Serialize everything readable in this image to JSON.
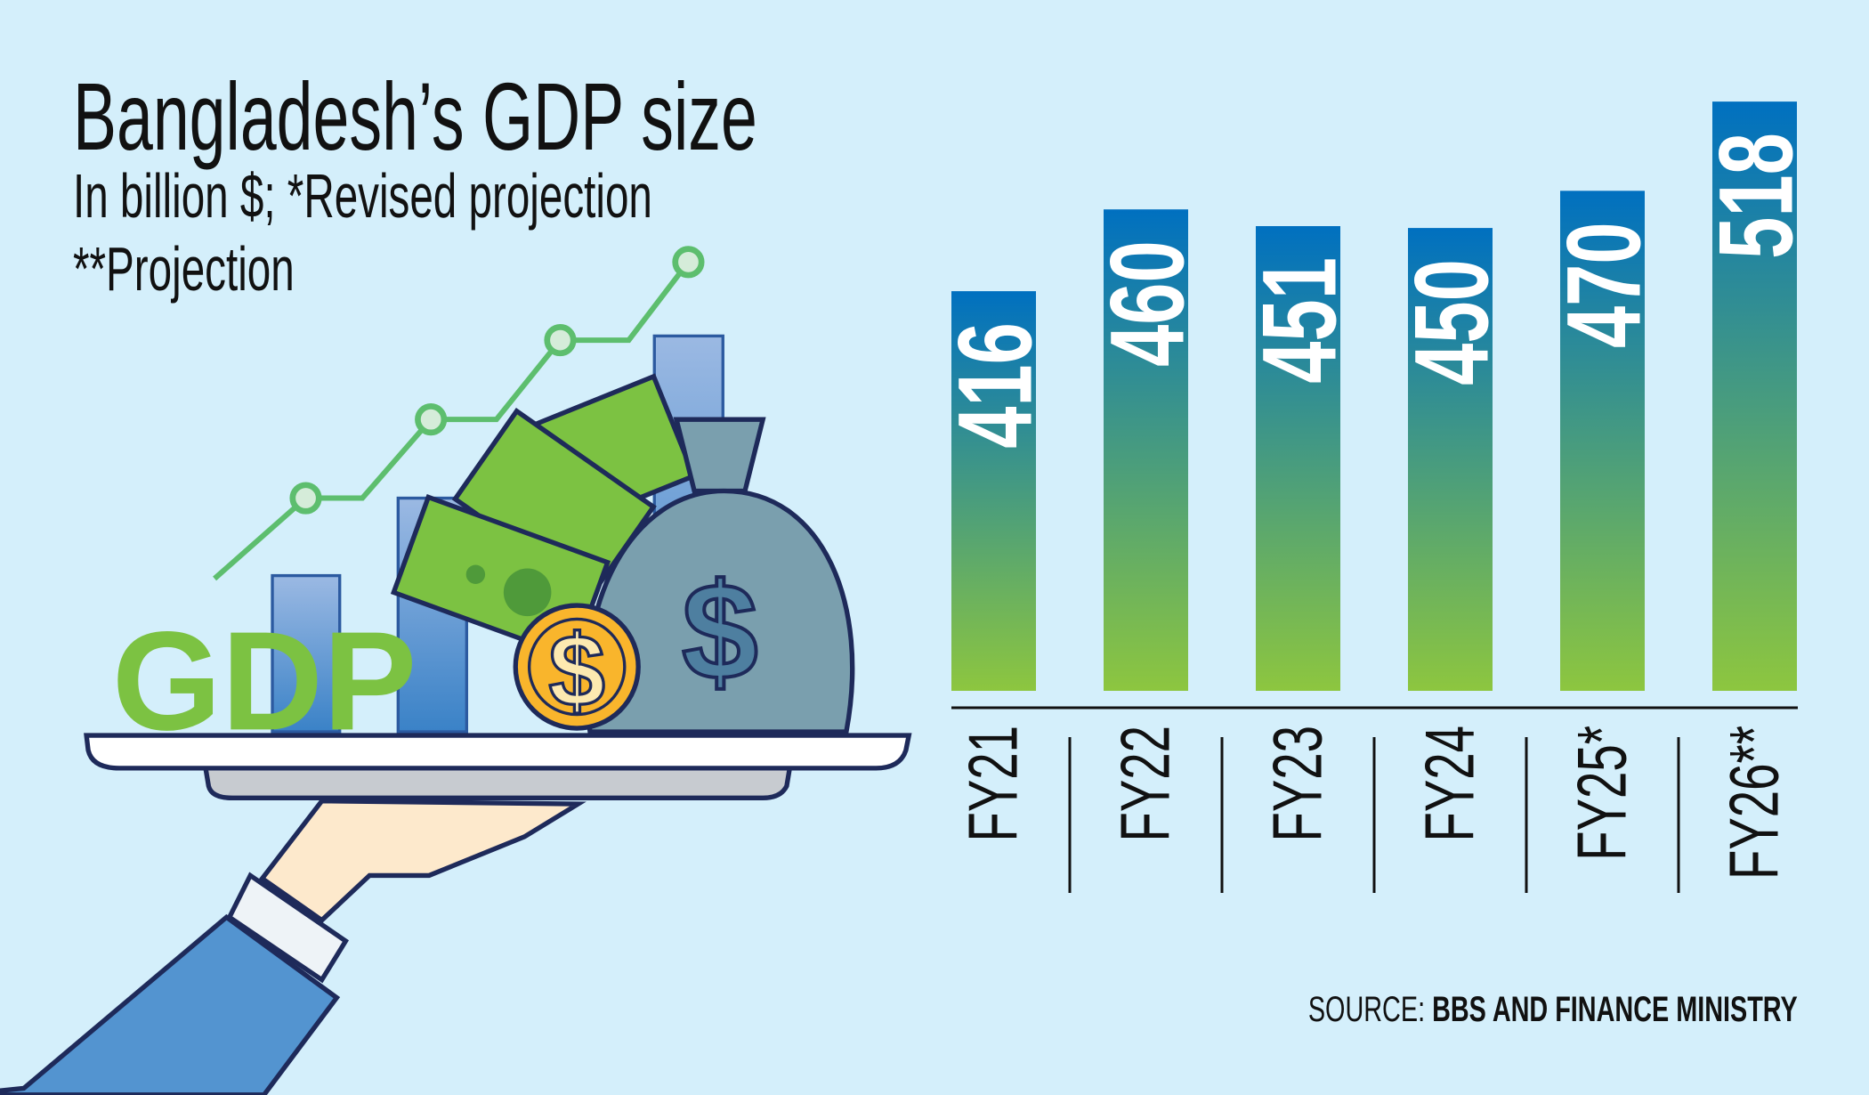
{
  "chart_data": {
    "type": "bar",
    "title": "Bangladesh’s GDP size",
    "subtitle_lines": [
      "In billion $; *Revised projection",
      "**Projection"
    ],
    "categories": [
      "FY21",
      "FY22",
      "FY23",
      "FY24",
      "FY25*",
      "FY26**"
    ],
    "values": [
      416,
      460,
      451,
      450,
      470,
      518
    ],
    "value_labels": [
      "416",
      "460",
      "451",
      "450",
      "470",
      "518"
    ],
    "ylim": [
      201,
      520
    ],
    "grid": false,
    "bar_gradient": {
      "top": "#0070c0",
      "bottom": "#8dc63f"
    },
    "label_orientation": "vertical"
  },
  "source": {
    "prefix": "SOURCE:",
    "text": "BBS AND FINANCE MINISTRY"
  },
  "illustration": {
    "text": "GDP",
    "icons": [
      "hand-tray-icon",
      "money-bag-icon",
      "dollar-coin-icon",
      "banknotes-icon",
      "growth-chart-icon"
    ]
  },
  "colors": {
    "background": "#d4effb",
    "gdp_text": "#7cc242",
    "line": "#5dbe6e",
    "coin": "#f9b52c",
    "bag": "#7a9fae",
    "sleeve": "#5394d0"
  }
}
